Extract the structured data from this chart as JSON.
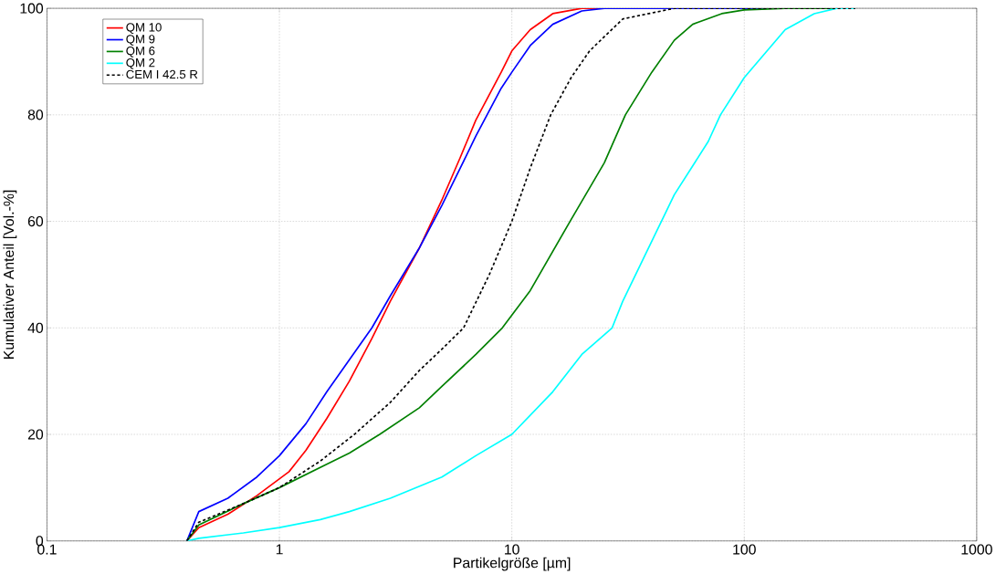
{
  "chart_data": {
    "type": "line",
    "xlabel": "Partikelgröße [µm]",
    "ylabel": "Kumulativer Anteil [Vol.-%]",
    "log": "x",
    "grid": true,
    "legend": "top left",
    "marker": "none",
    "xlim": [
      0.1,
      1000
    ],
    "xticks": [
      0.1,
      1,
      10,
      100,
      1000
    ],
    "ylim": [
      0,
      100
    ],
    "yticks": [
      0,
      20,
      40,
      60,
      80,
      100
    ],
    "series": [
      {
        "name": "QM 10",
        "color": "#ff0000",
        "x": [
          0.4,
          0.45,
          0.6,
          0.8,
          1.1,
          1.3,
          1.6,
          2,
          2.5,
          3,
          4,
          5,
          6,
          7,
          9,
          10,
          12,
          15,
          20,
          300
        ],
        "values": [
          0,
          2.5,
          5,
          8.5,
          13,
          17,
          23,
          30,
          38,
          45,
          55,
          64,
          72,
          79,
          88,
          92,
          96,
          99,
          100,
          100
        ]
      },
      {
        "name": "QM 9",
        "color": "#0000ff",
        "x": [
          0.4,
          0.45,
          0.6,
          0.8,
          1,
          1.3,
          1.6,
          2,
          2.5,
          3,
          4,
          5,
          6,
          7,
          9,
          10,
          12,
          15,
          20,
          25,
          300
        ],
        "values": [
          0,
          5.5,
          8,
          12,
          16,
          22,
          28,
          34,
          40,
          46,
          55,
          63,
          70,
          76,
          85,
          88,
          93,
          97,
          99.5,
          100,
          100
        ]
      },
      {
        "name": "QM 6",
        "color": "#008000",
        "x": [
          0.4,
          0.45,
          0.7,
          1,
          2,
          2.7,
          4,
          5,
          7,
          9.1,
          12,
          17.8,
          25,
          30.8,
          40,
          50,
          60,
          80,
          100,
          150,
          300
        ],
        "values": [
          0,
          3,
          7,
          10,
          16.5,
          20,
          25,
          29,
          35,
          40,
          47,
          60,
          71,
          80,
          88,
          94,
          97,
          99,
          99.7,
          100,
          100
        ]
      },
      {
        "name": "QM 2",
        "color": "#00ffff",
        "x": [
          0.4,
          0.45,
          0.7,
          1,
          1.5,
          2,
          3,
          5,
          7,
          10,
          15,
          20,
          27,
          30,
          44,
          50,
          70,
          79,
          100,
          150,
          200,
          250,
          300
        ],
        "values": [
          0,
          0.5,
          1.5,
          2.5,
          4,
          5.5,
          8,
          12,
          16,
          20,
          28,
          35,
          40,
          45,
          60,
          65,
          75,
          80,
          87,
          96,
          99,
          100,
          100
        ]
      },
      {
        "name": "CEM I 42.5 R",
        "color": "#000000",
        "line_style": "dotted",
        "x": [
          0.4,
          0.45,
          0.7,
          1,
          1.5,
          2.1,
          3,
          4,
          5,
          6.2,
          8,
          10,
          12,
          14.7,
          18,
          21.6,
          30,
          50,
          300
        ],
        "values": [
          0,
          3.5,
          7,
          10,
          15,
          20,
          26,
          32,
          36,
          40,
          50,
          60,
          70,
          80,
          87,
          92,
          98,
          100,
          100
        ]
      }
    ]
  }
}
